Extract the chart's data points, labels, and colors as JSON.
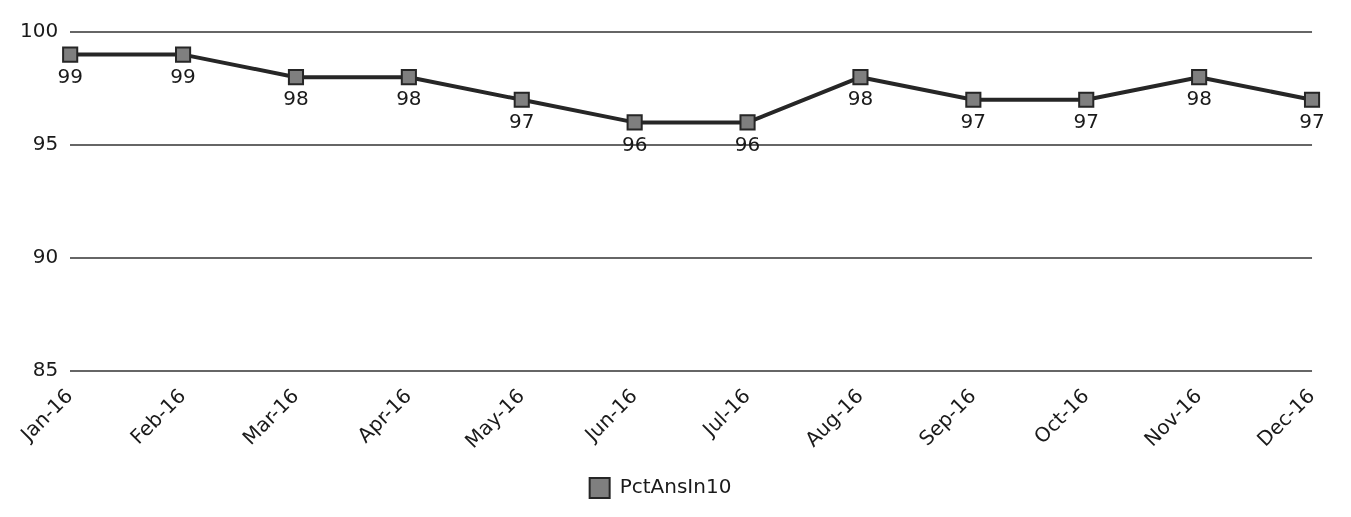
{
  "chart_data": {
    "type": "line",
    "categories": [
      "Jan-16",
      "Feb-16",
      "Mar-16",
      "Apr-16",
      "May-16",
      "Jun-16",
      "Jul-16",
      "Aug-16",
      "Sep-16",
      "Oct-16",
      "Nov-16",
      "Dec-16"
    ],
    "series": [
      {
        "name": "PctAnsIn10",
        "color": "#262626",
        "values": [
          99,
          99,
          98,
          98,
          97,
          96,
          96,
          98,
          97,
          97,
          98,
          97
        ]
      }
    ],
    "ylim": [
      85,
      100
    ],
    "yticks": [
      85,
      90,
      95,
      100
    ],
    "grid": "y",
    "legend": "bottom",
    "marker": "square",
    "line_style": "solid",
    "data_labels": true
  }
}
